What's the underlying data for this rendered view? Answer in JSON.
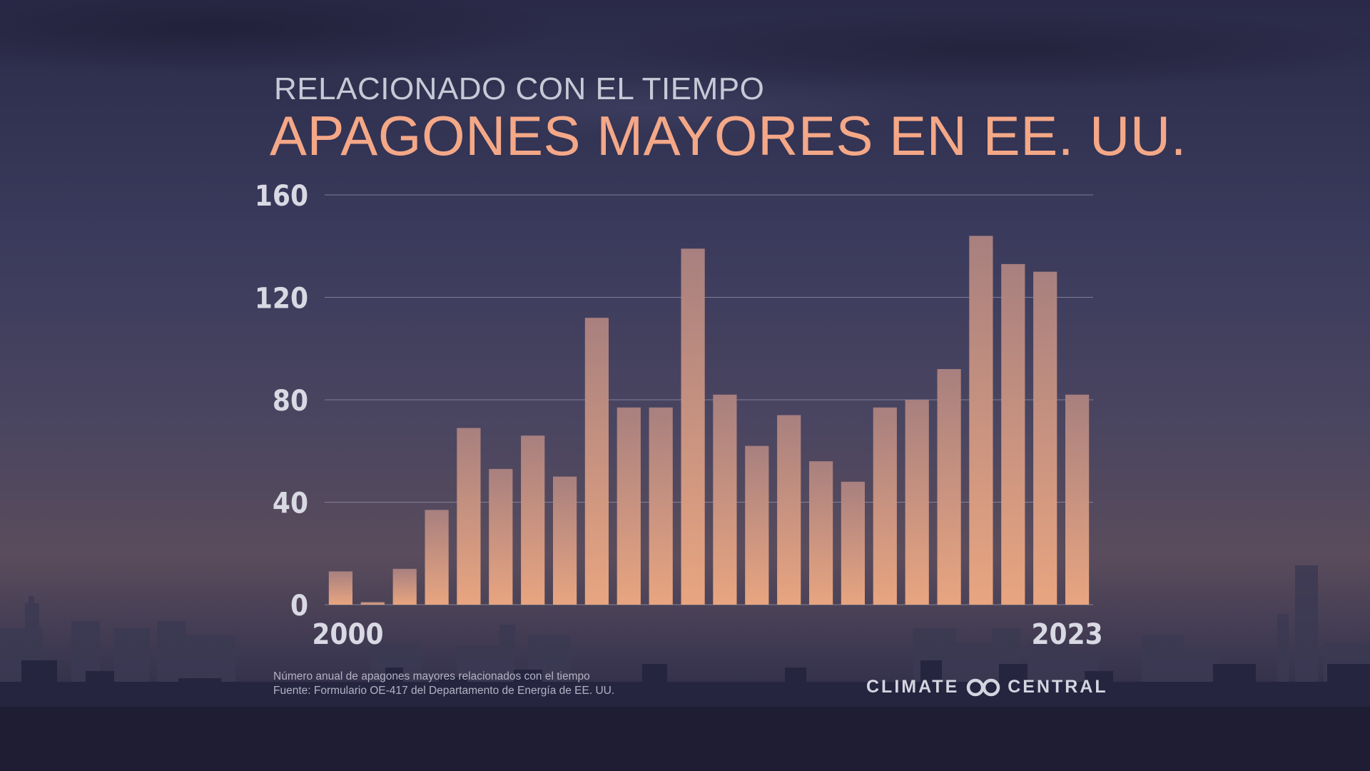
{
  "header": {
    "subtitle": "RELACIONADO CON EL TIEMPO",
    "title": "APAGONES MAYORES EN EE. UU."
  },
  "chart_data": {
    "type": "bar",
    "x": [
      2000,
      2001,
      2002,
      2003,
      2004,
      2005,
      2006,
      2007,
      2008,
      2009,
      2010,
      2011,
      2012,
      2013,
      2014,
      2015,
      2016,
      2017,
      2018,
      2019,
      2020,
      2021,
      2022,
      2023
    ],
    "x_tick_labels": [
      "2000",
      "2023"
    ],
    "values": [
      13,
      1,
      14,
      37,
      69,
      53,
      66,
      50,
      112,
      77,
      77,
      139,
      82,
      62,
      74,
      56,
      48,
      77,
      80,
      92,
      144,
      133,
      130,
      82
    ],
    "ylim": [
      0,
      160
    ],
    "y_ticks": [
      0,
      40,
      80,
      120,
      160
    ],
    "grid": true,
    "colors": {
      "bar_top": "#a8807f",
      "bar_bottom": "#e8a580",
      "grid": "#8a8aa2",
      "ticks": "#d9d9e4"
    }
  },
  "footnote": {
    "line1": "Número anual de apagones mayores relacionados con el tiempo",
    "line2": "Fuente: Formulario OE-417 del Departamento de Energía de EE. UU."
  },
  "logo": {
    "left_text": "CLIMATE",
    "right_text": "CENTRAL",
    "icon": "infinity-rings-icon"
  }
}
